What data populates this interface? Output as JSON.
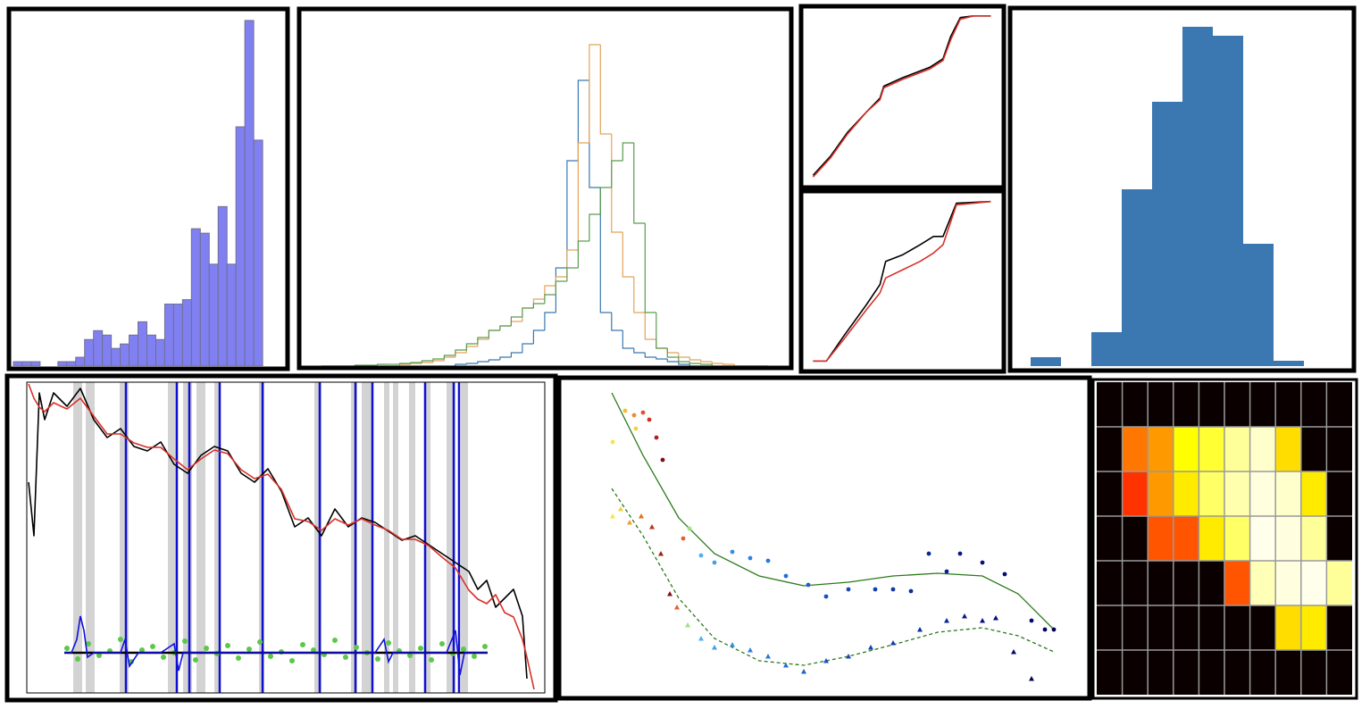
{
  "chart_data": [
    {
      "type": "histogram",
      "color": "#8080f2",
      "edgecolor": "#707090",
      "bins": [
        0,
        1,
        2,
        3,
        4,
        5,
        6,
        7,
        8,
        9,
        10,
        11,
        12,
        13,
        14,
        15,
        16,
        17,
        18,
        19,
        20,
        21,
        22,
        23,
        24,
        25,
        26,
        27,
        28
      ],
      "counts": [
        0.1,
        0.1,
        0.1,
        0,
        0,
        0.1,
        0.1,
        0.2,
        0.6,
        0.8,
        0.7,
        0.4,
        0.5,
        0.7,
        1.0,
        0.7,
        0.6,
        1.4,
        1.4,
        1.5,
        3.1,
        3.0,
        2.3,
        3.6,
        2.3,
        5.4,
        7.8,
        5.1
      ],
      "xlim": [
        -0.3,
        30.4
      ],
      "ylim": [
        0,
        8
      ]
    },
    {
      "type": "step_histogram",
      "bins": [
        0,
        1,
        2,
        3,
        4,
        5,
        6,
        7,
        8,
        9,
        10,
        11,
        12,
        13,
        14,
        15,
        16,
        17,
        18,
        19,
        20,
        21,
        22,
        23,
        24,
        25,
        26,
        27,
        28,
        29,
        30,
        31,
        32,
        33,
        34,
        35,
        36,
        37,
        38,
        39,
        40
      ],
      "series": [
        {
          "color": "#3a78b0",
          "values": [
            0,
            0,
            0,
            0,
            0,
            0,
            0,
            0,
            0,
            0,
            0,
            0,
            2,
            3,
            5,
            7,
            10,
            15,
            25,
            40,
            60,
            110,
            230,
            320,
            200,
            60,
            40,
            20,
            15,
            10,
            8,
            5,
            2,
            0,
            0,
            0,
            0,
            0,
            0,
            0
          ]
        },
        {
          "color": "#e2a35a",
          "values": [
            0,
            0,
            0,
            0,
            0,
            0,
            0,
            2,
            3,
            4,
            6,
            10,
            15,
            22,
            30,
            40,
            45,
            50,
            65,
            75,
            90,
            100,
            130,
            250,
            360,
            260,
            150,
            100,
            60,
            30,
            20,
            15,
            10,
            7,
            5,
            3,
            2,
            0,
            0,
            0
          ]
        },
        {
          "color": "#5a9c50",
          "values": [
            0,
            0,
            0,
            1,
            1,
            2,
            2,
            3,
            4,
            6,
            8,
            12,
            18,
            25,
            32,
            40,
            45,
            55,
            65,
            70,
            80,
            95,
            110,
            140,
            170,
            200,
            230,
            250,
            160,
            60,
            20,
            10,
            5,
            3,
            2,
            0,
            0,
            0,
            0,
            0
          ]
        }
      ],
      "xlim": [
        -1.6,
        41.7
      ],
      "ylim": [
        0,
        396
      ]
    },
    {
      "type": "line",
      "x": [
        0.03,
        0.12,
        0.21,
        0.31,
        0.38,
        0.4,
        0.5,
        0.64,
        0.71,
        0.75,
        0.8,
        0.87,
        0.96
      ],
      "series": [
        {
          "color": "#000000",
          "values": [
            0.04,
            0.15,
            0.29,
            0.41,
            0.49,
            0.56,
            0.61,
            0.67,
            0.72,
            0.85,
            0.96,
            0.97,
            0.97
          ]
        },
        {
          "color": "#d8302a",
          "values": [
            0.03,
            0.14,
            0.28,
            0.41,
            0.48,
            0.55,
            0.6,
            0.66,
            0.71,
            0.83,
            0.95,
            0.97,
            0.97
          ]
        }
      ],
      "xlim": [
        0,
        1
      ],
      "ylim": [
        0,
        1
      ]
    },
    {
      "type": "line",
      "x": [
        0.03,
        0.1,
        0.19,
        0.31,
        0.38,
        0.41,
        0.5,
        0.59,
        0.66,
        0.71,
        0.78,
        0.96
      ],
      "series": [
        {
          "color": "#000000",
          "values": [
            0.02,
            0.02,
            0.17,
            0.36,
            0.48,
            0.62,
            0.66,
            0.72,
            0.77,
            0.77,
            0.97,
            0.98
          ]
        },
        {
          "color": "#d8302a",
          "values": [
            0.02,
            0.02,
            0.15,
            0.33,
            0.43,
            0.52,
            0.57,
            0.62,
            0.67,
            0.72,
            0.96,
            0.98
          ]
        }
      ],
      "xlim": [
        0,
        1
      ],
      "ylim": [
        0,
        1
      ]
    },
    {
      "type": "histogram",
      "color": "#3b77b0",
      "bins": [
        0,
        1,
        2,
        3,
        4,
        5,
        6,
        7,
        8,
        9
      ],
      "counts": [
        10,
        0,
        38,
        198,
        296,
        380,
        370,
        137,
        6
      ],
      "xlim": [
        -0.5,
        10.5
      ],
      "ylim": [
        0,
        396
      ]
    },
    {
      "type": "line",
      "x": [
        2,
        8,
        14,
        20,
        30,
        45,
        60,
        75,
        90,
        105,
        120,
        135,
        150,
        165,
        180,
        195,
        210,
        225,
        240,
        255,
        270,
        285,
        300,
        315,
        330,
        345,
        360,
        375,
        390,
        405,
        420,
        435,
        450,
        465,
        480,
        495,
        505,
        515,
        525,
        535,
        545,
        555,
        560,
        568
      ],
      "series": [
        {
          "color": "#000000",
          "values": [
            236,
            176,
            336,
            306,
            336,
            321,
            341,
            306,
            286,
            296,
            276,
            271,
            281,
            256,
            246,
            266,
            276,
            271,
            246,
            236,
            251,
            226,
            186,
            196,
            176,
            206,
            186,
            196,
            191,
            181,
            171,
            176,
            166,
            156,
            146,
            136,
            116,
            126,
            96,
            106,
            116,
            86,
            16,
            null
          ]
        },
        {
          "color": "#d8302a",
          "values": [
            346,
            330,
            320,
            315,
            325,
            318,
            330,
            310,
            290,
            290,
            280,
            275,
            275,
            262,
            250,
            262,
            272,
            268,
            250,
            240,
            245,
            228,
            195,
            192,
            182,
            195,
            188,
            195,
            188,
            182,
            172,
            172,
            165,
            152,
            140,
            115,
            105,
            100,
            110,
            90,
            85,
            60,
            40,
            4
          ]
        }
      ],
      "shaded_regions": [
        [
          52,
          62
        ],
        [
          66,
          76
        ],
        [
          104,
          114
        ],
        [
          158,
          168
        ],
        [
          175,
          185
        ],
        [
          190,
          200
        ],
        [
          210,
          215
        ],
        [
          260,
          266
        ],
        [
          322,
          330
        ],
        [
          363,
          370
        ],
        [
          375,
          388
        ],
        [
          400,
          406
        ],
        [
          410,
          416
        ],
        [
          428,
          435
        ],
        [
          445,
          452
        ],
        [
          470,
          480
        ],
        [
          486,
          494
        ]
      ],
      "shade_color": "#d3d3d3",
      "vlines": {
        "color": "#1010d0",
        "x": [
          111,
          168,
          182,
          216,
          264,
          328,
          368,
          387,
          446,
          478,
          484
        ]
      },
      "points": {
        "color": "#5cc84a",
        "x": [
          45,
          57,
          69,
          81,
          93,
          105,
          117,
          129,
          141,
          153,
          165,
          177,
          189,
          201,
          213,
          225,
          237,
          249,
          261,
          273,
          285,
          297,
          309,
          321,
          333,
          345,
          357,
          369,
          381,
          393,
          405,
          417,
          429,
          441,
          453,
          465,
          477,
          489,
          501,
          513
        ],
        "values": [
          50,
          38,
          55,
          42,
          47,
          60,
          35,
          48,
          52,
          40,
          45,
          58,
          37,
          50,
          44,
          53,
          39,
          49,
          57,
          41,
          46,
          36,
          54,
          48,
          43,
          59,
          40,
          51,
          45,
          38,
          56,
          47,
          42,
          50,
          37,
          55,
          44,
          49,
          41,
          52
        ]
      },
      "baseline": {
        "color": "#000000",
        "x": [
          42,
          516
        ],
        "values": [
          45,
          45
        ]
      },
      "residual": {
        "color": "#1010e0",
        "x": [
          42,
          50,
          56,
          60,
          64,
          68,
          75,
          90,
          105,
          110,
          115,
          125,
          150,
          165,
          170,
          175,
          190,
          230,
          260,
          290,
          320,
          360,
          390,
          400,
          405,
          410,
          430,
          450,
          470,
          480,
          485,
          490,
          516
        ],
        "values": [
          45,
          45,
          60,
          86,
          70,
          40,
          45,
          45,
          45,
          60,
          30,
          45,
          45,
          55,
          25,
          45,
          45,
          45,
          45,
          45,
          45,
          45,
          45,
          60,
          35,
          45,
          45,
          45,
          45,
          70,
          20,
          45,
          45
        ]
      },
      "xlim": [
        0,
        580
      ],
      "ylim": [
        0,
        348
      ]
    },
    {
      "type": "scatter",
      "series": [
        {
          "marker": "circle",
          "x": [
            56,
            70,
            80,
            82,
            90,
            97,
            105,
            112,
            135,
            142,
            155,
            170,
            190,
            210,
            230,
            250,
            275,
            295,
            320,
            350,
            370,
            390,
            410,
            430,
            445,
            470,
            495,
            525,
            540,
            550
          ],
          "values": [
            285,
            320,
            315,
            300,
            318,
            310,
            290,
            265,
            177,
            188,
            158,
            150,
            162,
            155,
            152,
            135,
            125,
            112,
            120,
            120,
            120,
            118,
            160,
            140,
            160,
            150,
            137,
            85,
            75,
            75
          ],
          "colors": [
            "#f5e642",
            "#f0c030",
            "#f08a30",
            "#f5d040",
            "#e05030",
            "#d03020",
            "#b02020",
            "#801010",
            "#e06030",
            "#a0e080",
            "#50b0f0",
            "#40a0e8",
            "#3090e0",
            "#3080e0",
            "#2878d8",
            "#2070d0",
            "#2060c8",
            "#1850c0",
            "#1848b8",
            "#1040b0",
            "#1038a8",
            "#0830a0",
            "#082898",
            "#082090",
            "#061888",
            "#061080",
            "#040c78",
            "#030870",
            "#020660",
            "#020450"
          ]
        },
        {
          "marker": "triangle",
          "x": [
            56,
            65,
            75,
            88,
            100,
            110,
            120,
            128,
            140,
            155,
            170,
            190,
            210,
            230,
            250,
            270,
            295,
            320,
            345,
            370,
            400,
            430,
            450,
            470,
            485,
            505,
            525
          ],
          "values": [
            202,
            210,
            195,
            202,
            190,
            160,
            115,
            100,
            80,
            65,
            55,
            58,
            52,
            45,
            35,
            28,
            40,
            45,
            55,
            60,
            75,
            85,
            90,
            85,
            88,
            50,
            20
          ],
          "colors": [
            "#f5e642",
            "#f0d040",
            "#f0a030",
            "#e07020",
            "#c03020",
            "#a02010",
            "#801010",
            "#e06030",
            "#a0e080",
            "#50b0f0",
            "#40a0e8",
            "#3090e0",
            "#3080e0",
            "#2878d8",
            "#2070d0",
            "#2060c8",
            "#1850c0",
            "#1848b8",
            "#1040b0",
            "#1038a8",
            "#0830a0",
            "#082898",
            "#061888",
            "#061080",
            "#040c78",
            "#030870",
            "#020450"
          ]
        }
      ],
      "curves": [
        {
          "color": "#2a7a1a",
          "dash": false,
          "x": [
            55,
            90,
            130,
            170,
            220,
            270,
            320,
            370,
            420,
            470,
            510,
            550
          ],
          "values": [
            340,
            270,
            200,
            160,
            135,
            124,
            128,
            135,
            138,
            135,
            115,
            75
          ]
        },
        {
          "color": "#2a7a1a",
          "dash": true,
          "x": [
            55,
            90,
            130,
            170,
            220,
            270,
            320,
            370,
            420,
            470,
            510,
            550
          ],
          "values": [
            233,
            180,
            110,
            65,
            40,
            35,
            45,
            58,
            72,
            77,
            68,
            50
          ]
        }
      ],
      "xlim": [
        0,
        588
      ],
      "ylim": [
        0,
        356
      ]
    },
    {
      "type": "heatmap",
      "colormap": "hot",
      "grid": true,
      "values": [
        [
          0,
          0,
          0,
          0,
          0,
          0,
          0,
          0,
          0,
          0
        ],
        [
          0,
          0.55,
          0.6,
          0.75,
          0.8,
          0.9,
          0.95,
          0.7,
          0,
          0
        ],
        [
          0,
          0.45,
          0.6,
          0.72,
          0.85,
          0.92,
          0.97,
          0.95,
          0.72,
          0
        ],
        [
          0,
          0,
          0.5,
          0.5,
          0.72,
          0.85,
          0.98,
          0.97,
          0.9,
          0
        ],
        [
          0,
          0,
          0,
          0,
          0,
          0.5,
          0.93,
          0.97,
          0.98,
          0.9
        ],
        [
          0,
          0,
          0,
          0,
          0,
          0,
          0,
          0.7,
          0.72,
          0
        ],
        [
          0,
          0,
          0,
          0,
          0,
          0,
          0,
          0,
          0,
          0
        ]
      ]
    }
  ]
}
